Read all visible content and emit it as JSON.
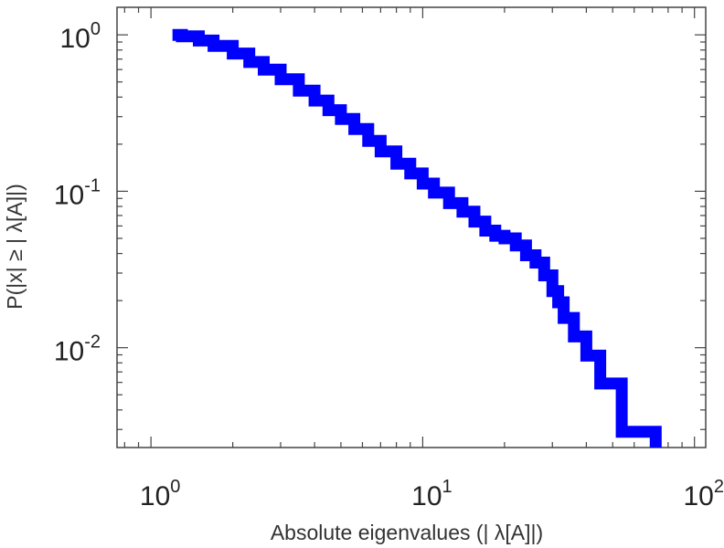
{
  "chart_data": {
    "type": "line",
    "xscale": "log",
    "yscale": "log",
    "xlim": [
      0.75,
      110
    ],
    "ylim": [
      0.0023,
      1.5
    ],
    "xlabel": "Absolute eigenvalues (|      λ[A]|)",
    "ylabel": "P(|x|  ≥ | λ[A]|)",
    "x_ticks": [
      {
        "value": 1,
        "base": "10",
        "exp": "0"
      },
      {
        "value": 10,
        "base": "10",
        "exp": "1"
      },
      {
        "value": 100,
        "base": "10",
        "exp": "2"
      }
    ],
    "y_ticks": [
      {
        "value": 1,
        "base": "10",
        "exp": "0"
      },
      {
        "value": 0.1,
        "base": "10",
        "exp": "-1"
      },
      {
        "value": 0.01,
        "base": "10",
        "exp": "-2"
      }
    ],
    "grid": false,
    "series": [
      {
        "color": "#0000ff",
        "style": "step",
        "x": [
          1.2,
          1.3,
          1.5,
          1.7,
          2.0,
          2.3,
          2.6,
          3.0,
          3.5,
          4.0,
          4.5,
          5.0,
          5.6,
          6.3,
          7.0,
          8.0,
          9.0,
          10.0,
          11.0,
          12.5,
          14.0,
          15.5,
          17.0,
          18.5,
          20.0,
          22.0,
          24.0,
          26.0,
          28.0,
          30.0,
          31.5,
          33.0,
          36.0,
          40.0,
          45.0,
          54.0,
          72.0,
          72.0
        ],
        "y": [
          1.0,
          0.98,
          0.92,
          0.85,
          0.76,
          0.67,
          0.6,
          0.52,
          0.44,
          0.38,
          0.33,
          0.29,
          0.25,
          0.21,
          0.18,
          0.15,
          0.13,
          0.112,
          0.098,
          0.084,
          0.074,
          0.064,
          0.056,
          0.052,
          0.05,
          0.045,
          0.039,
          0.035,
          0.029,
          0.023,
          0.0195,
          0.0155,
          0.0118,
          0.0089,
          0.0059,
          0.0029,
          0.0029,
          0.0023
        ]
      }
    ]
  }
}
